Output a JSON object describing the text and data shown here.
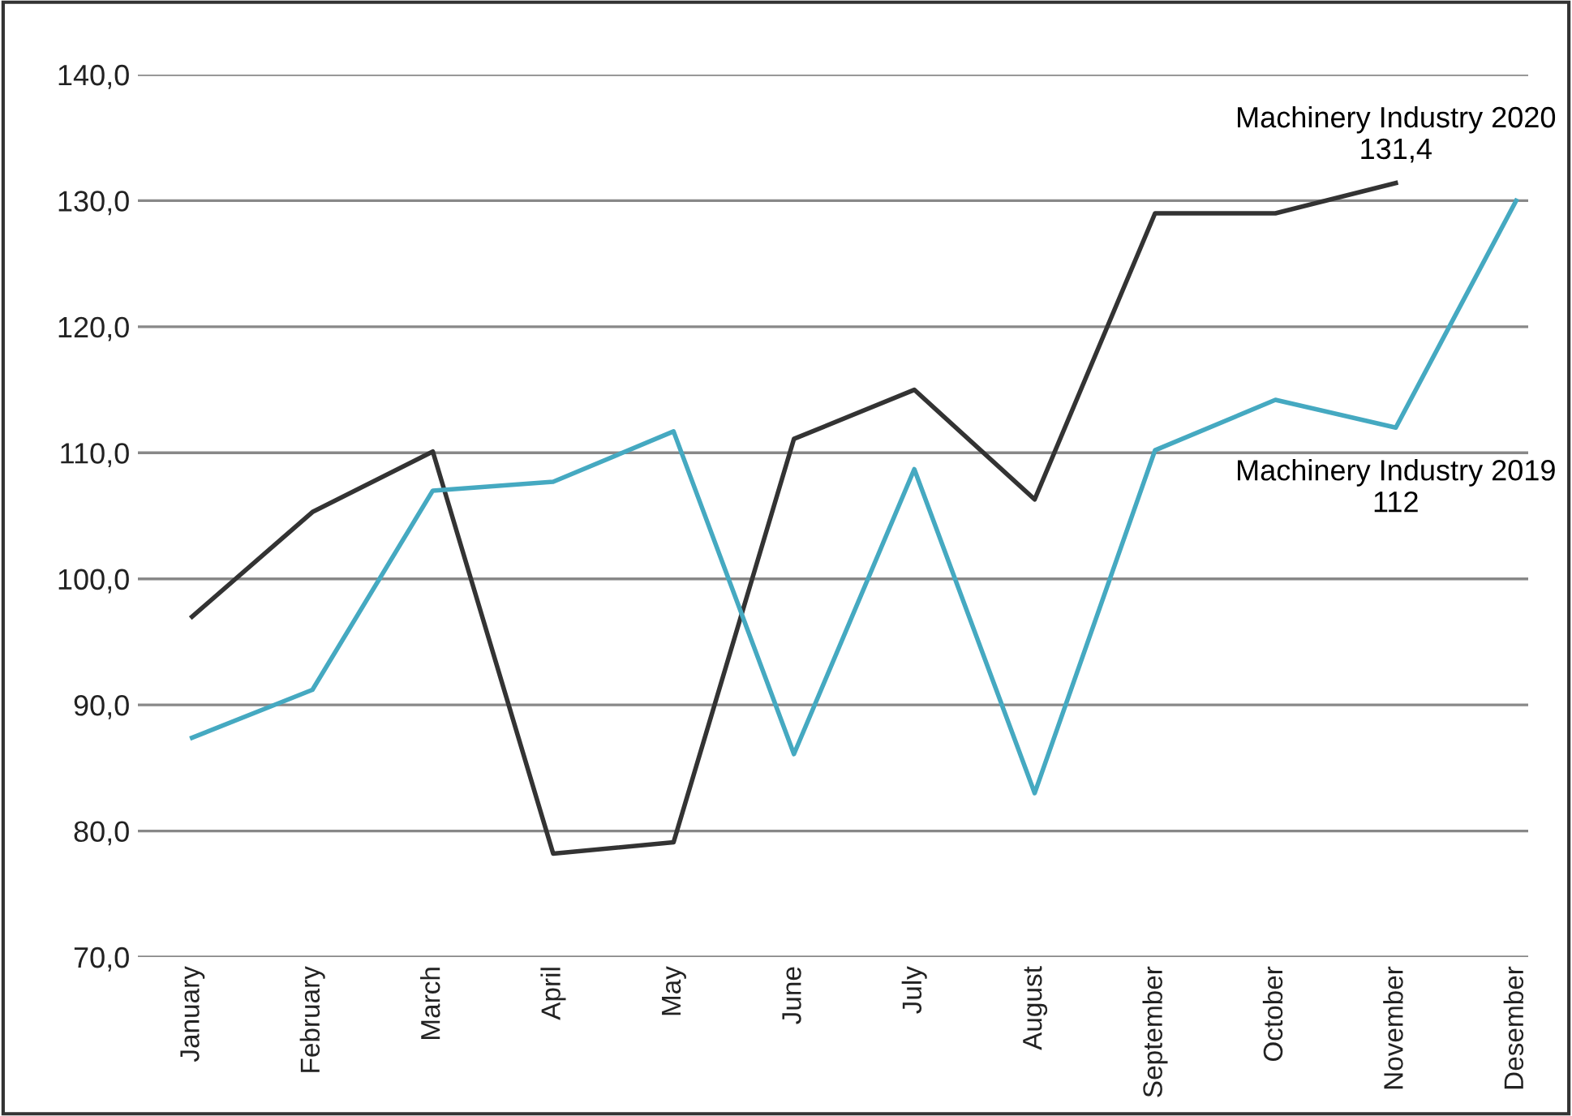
{
  "chart_data": {
    "type": "line",
    "categories": [
      "January",
      "February",
      "March",
      "April",
      "May",
      "June",
      "July",
      "August",
      "September",
      "October",
      "November",
      "Desember"
    ],
    "series": [
      {
        "color": "#333333",
        "values": [
          97.0,
          105.3,
          110.1,
          78.2,
          79.1,
          111.1,
          115.0,
          106.3,
          129.0,
          129.0,
          131.4,
          null
        ]
      },
      {
        "color": "#45a9c1",
        "values": [
          87.4,
          91.2,
          107.0,
          107.7,
          111.7,
          86.1,
          108.7,
          83.0,
          110.2,
          114.2,
          112,
          130.0
        ]
      }
    ],
    "ylim": [
      70,
      140
    ],
    "yticks": [
      {
        "value": 70,
        "label": "70,0"
      },
      {
        "value": 80,
        "label": "80,0"
      },
      {
        "value": 90,
        "label": "90,0"
      },
      {
        "value": 100,
        "label": "100,0"
      },
      {
        "value": 110,
        "label": "110,0"
      },
      {
        "value": 120,
        "label": "120,0"
      },
      {
        "value": 130,
        "label": "130,0"
      },
      {
        "value": 140,
        "label": "140,0"
      }
    ],
    "grid": "y",
    "marker": "none",
    "line_style": "solid",
    "annotations": [
      {
        "text": "Machinery Industry 2020\n131,4",
        "x": "November",
        "y": 131.4
      },
      {
        "text": "Machinery Industry 2019\n112",
        "x": "November",
        "y": 112
      }
    ]
  }
}
